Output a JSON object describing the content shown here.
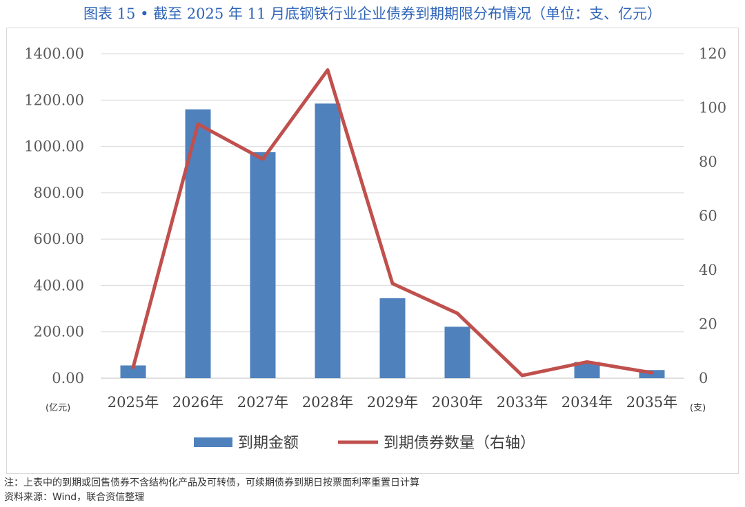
{
  "title": "图表 15 • 截至 2025 年 11 月底钢铁行业企业债券到期期限分布情况（单位：支、亿元）",
  "chart_data": {
    "type": "bar+line",
    "categories": [
      "2025年",
      "2026年",
      "2027年",
      "2028年",
      "2029年",
      "2030年",
      "2033年",
      "2034年",
      "2035年"
    ],
    "series": [
      {
        "name": "到期金额",
        "type": "bar",
        "axis": "left",
        "color": "#4f81bd",
        "values": [
          55,
          1160,
          975,
          1185,
          345,
          222,
          0,
          70,
          35
        ]
      },
      {
        "name": "到期债券数量（右轴）",
        "type": "line",
        "axis": "right",
        "color": "#c0504d",
        "values": [
          4,
          94,
          81,
          114,
          35,
          24,
          1,
          6,
          2
        ]
      }
    ],
    "left_axis": {
      "min": 0,
      "max": 1400,
      "step": 200,
      "ticks": [
        "0.00",
        "200.00",
        "400.00",
        "600.00",
        "800.00",
        "1000.00",
        "1200.00",
        "1400.00"
      ],
      "unit": "(亿元)"
    },
    "right_axis": {
      "min": 0,
      "max": 120,
      "step": 20,
      "ticks": [
        "0",
        "20",
        "40",
        "60",
        "80",
        "100",
        "120"
      ],
      "unit": "(支)"
    },
    "legend": [
      "到期金额",
      "到期债券数量（右轴）"
    ],
    "legend_position": "bottom",
    "grid": true
  },
  "notes": {
    "note": "注：上表中的到期或回售债券不含结构化产品及可转债，可续期债券到期日按票面利率重置日计算",
    "source": "资料来源：Wind，联合资信整理"
  }
}
